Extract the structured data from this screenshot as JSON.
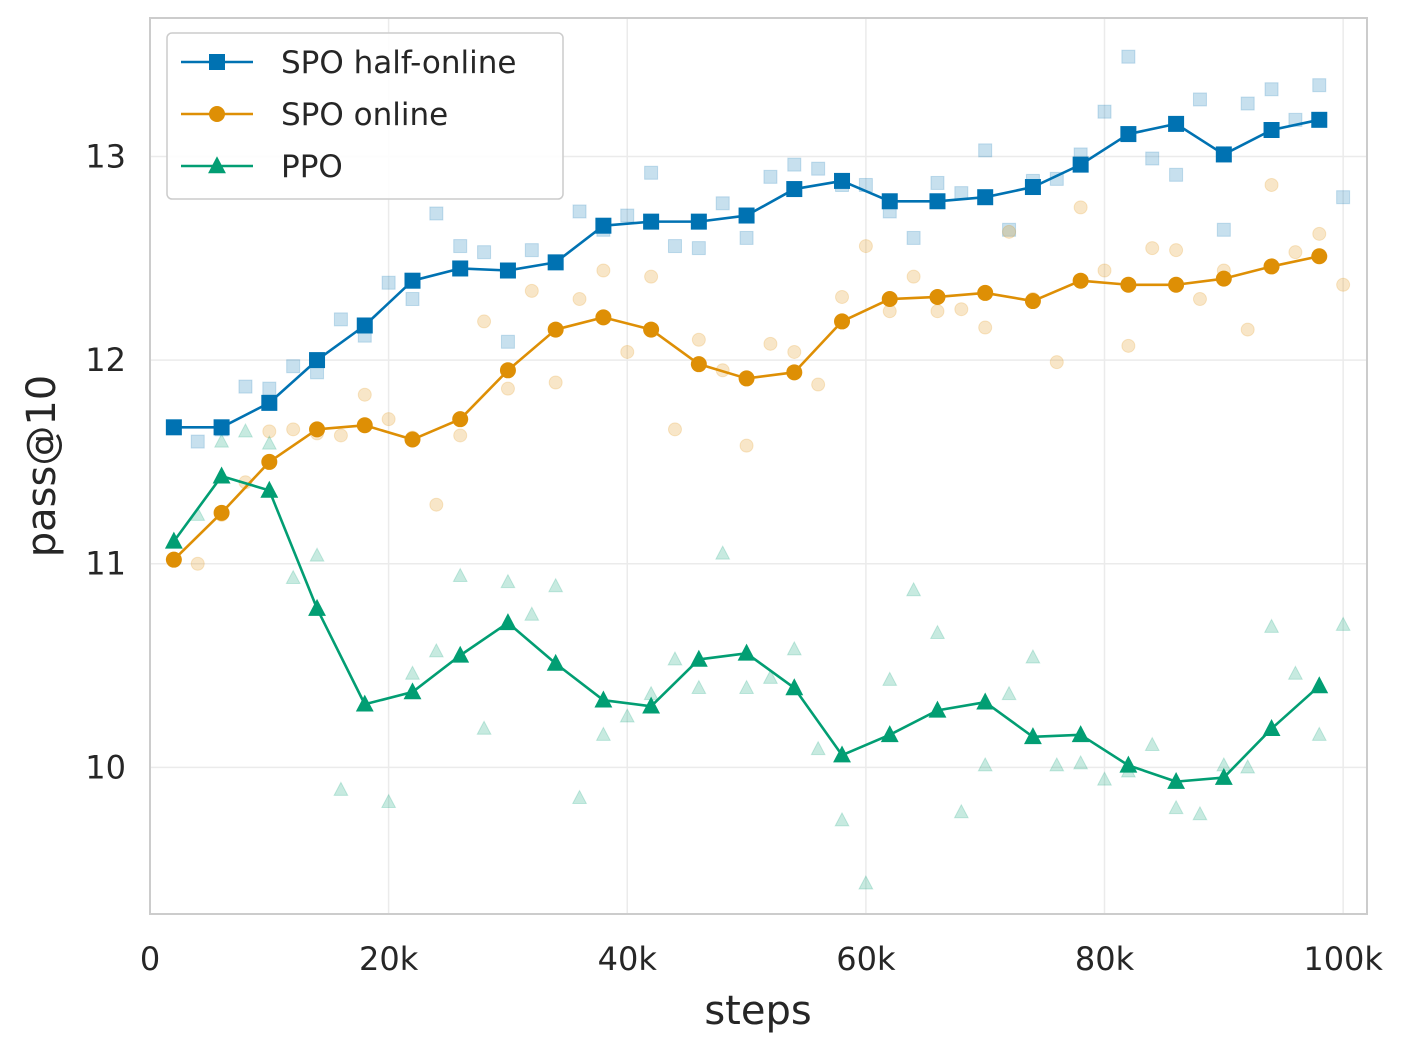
{
  "chart_data": {
    "type": "line",
    "title": "",
    "xlabel": "steps",
    "ylabel": "pass@10",
    "xlim": [
      0,
      102000
    ],
    "ylim": [
      9.28,
      13.68
    ],
    "x_ticks": [
      0,
      20000,
      40000,
      60000,
      80000,
      100000
    ],
    "x_tick_labels": [
      "0",
      "20k",
      "40k",
      "60k",
      "80k",
      "100k"
    ],
    "y_ticks": [
      10,
      11,
      12,
      13
    ],
    "y_tick_labels": [
      "10",
      "11",
      "12",
      "13"
    ],
    "grid": true,
    "legend_position": "top-left",
    "series": [
      {
        "name": "SPO half-online",
        "color": "#0072b2",
        "marker": "square",
        "x": [
          2000,
          6000,
          10000,
          14000,
          18000,
          22000,
          26000,
          30000,
          34000,
          38000,
          42000,
          46000,
          50000,
          54000,
          58000,
          62000,
          66000,
          70000,
          74000,
          78000,
          82000,
          86000,
          90000,
          94000,
          98000
        ],
        "values": [
          11.67,
          11.67,
          11.79,
          12.0,
          12.17,
          12.39,
          12.45,
          12.44,
          12.48,
          12.66,
          12.68,
          12.68,
          12.71,
          12.84,
          12.88,
          12.78,
          12.78,
          12.8,
          12.85,
          12.96,
          13.11,
          13.16,
          13.01,
          13.13,
          13.18
        ],
        "raw_x": [
          4000,
          6000,
          8000,
          10000,
          12000,
          14000,
          16000,
          18000,
          20000,
          22000,
          24000,
          26000,
          28000,
          30000,
          32000,
          34000,
          36000,
          38000,
          40000,
          42000,
          44000,
          46000,
          48000,
          50000,
          52000,
          54000,
          56000,
          58000,
          60000,
          62000,
          64000,
          66000,
          68000,
          70000,
          72000,
          74000,
          76000,
          78000,
          80000,
          82000,
          84000,
          86000,
          88000,
          90000,
          92000,
          94000,
          96000,
          98000,
          100000
        ],
        "raw_values": [
          11.6,
          11.66,
          11.87,
          11.86,
          11.97,
          11.94,
          12.2,
          12.12,
          12.38,
          12.3,
          12.72,
          12.56,
          12.53,
          12.09,
          12.54,
          12.48,
          12.73,
          12.64,
          12.71,
          12.92,
          12.56,
          12.55,
          12.77,
          12.6,
          12.9,
          12.96,
          12.94,
          12.86,
          12.86,
          12.73,
          12.6,
          12.87,
          12.82,
          13.03,
          12.64,
          12.88,
          12.89,
          13.01,
          13.22,
          13.49,
          12.99,
          12.91,
          13.28,
          12.64,
          13.26,
          13.33,
          13.18,
          13.35,
          12.8
        ]
      },
      {
        "name": "SPO online",
        "color": "#de8f05",
        "marker": "circle",
        "x": [
          2000,
          6000,
          10000,
          14000,
          18000,
          22000,
          26000,
          30000,
          34000,
          38000,
          42000,
          46000,
          50000,
          54000,
          58000,
          62000,
          66000,
          70000,
          74000,
          78000,
          82000,
          86000,
          90000,
          94000,
          98000
        ],
        "values": [
          11.02,
          11.25,
          11.5,
          11.66,
          11.68,
          11.61,
          11.71,
          11.95,
          12.15,
          12.21,
          12.15,
          11.98,
          11.91,
          11.94,
          12.19,
          12.3,
          12.31,
          12.33,
          12.29,
          12.39,
          12.37,
          12.37,
          12.4,
          12.46,
          12.51
        ],
        "raw_x": [
          4000,
          6000,
          8000,
          10000,
          12000,
          14000,
          16000,
          18000,
          20000,
          22000,
          24000,
          26000,
          28000,
          30000,
          32000,
          34000,
          36000,
          38000,
          40000,
          42000,
          44000,
          46000,
          48000,
          50000,
          52000,
          54000,
          56000,
          58000,
          60000,
          62000,
          64000,
          66000,
          68000,
          70000,
          72000,
          74000,
          76000,
          78000,
          80000,
          82000,
          84000,
          86000,
          88000,
          90000,
          92000,
          94000,
          96000,
          98000,
          100000
        ],
        "raw_values": [
          11.0,
          11.24,
          11.4,
          11.65,
          11.66,
          11.64,
          11.63,
          11.83,
          11.71,
          11.62,
          11.29,
          11.63,
          12.19,
          11.86,
          12.34,
          11.89,
          12.3,
          12.44,
          12.04,
          12.41,
          11.66,
          12.1,
          11.95,
          11.58,
          12.08,
          12.04,
          11.88,
          12.31,
          12.56,
          12.24,
          12.41,
          12.24,
          12.25,
          12.16,
          12.63,
          12.3,
          11.99,
          12.75,
          12.44,
          12.07,
          12.55,
          12.54,
          12.3,
          12.44,
          12.15,
          12.86,
          12.53,
          12.62,
          12.37
        ]
      },
      {
        "name": "PPO",
        "color": "#029e73",
        "marker": "triangle",
        "x": [
          2000,
          6000,
          10000,
          14000,
          18000,
          22000,
          26000,
          30000,
          34000,
          38000,
          42000,
          46000,
          50000,
          54000,
          58000,
          62000,
          66000,
          70000,
          74000,
          78000,
          82000,
          86000,
          90000,
          94000,
          98000
        ],
        "values": [
          11.11,
          11.43,
          11.36,
          10.78,
          10.31,
          10.37,
          10.55,
          10.71,
          10.51,
          10.33,
          10.3,
          10.53,
          10.56,
          10.39,
          10.06,
          10.16,
          10.28,
          10.32,
          10.15,
          10.16,
          10.01,
          9.93,
          9.95,
          10.19,
          10.4
        ],
        "raw_x": [
          4000,
          6000,
          8000,
          10000,
          12000,
          14000,
          16000,
          18000,
          20000,
          22000,
          24000,
          26000,
          28000,
          30000,
          32000,
          34000,
          36000,
          38000,
          40000,
          42000,
          44000,
          46000,
          48000,
          50000,
          52000,
          54000,
          56000,
          58000,
          60000,
          62000,
          64000,
          66000,
          68000,
          70000,
          72000,
          74000,
          76000,
          78000,
          80000,
          82000,
          84000,
          86000,
          88000,
          90000,
          92000,
          94000,
          96000,
          98000,
          100000
        ],
        "raw_values": [
          11.24,
          11.6,
          11.65,
          11.59,
          10.93,
          11.04,
          9.89,
          10.31,
          9.83,
          10.46,
          10.57,
          10.94,
          10.19,
          10.91,
          10.75,
          10.89,
          9.85,
          10.16,
          10.25,
          10.36,
          10.53,
          10.39,
          11.05,
          10.39,
          10.44,
          10.58,
          10.09,
          9.74,
          9.43,
          10.43,
          10.87,
          10.66,
          9.78,
          10.01,
          10.36,
          10.54,
          10.01,
          10.02,
          9.94,
          9.98,
          10.11,
          9.8,
          9.77,
          10.01,
          10.0,
          10.69,
          10.46,
          10.16,
          10.7
        ]
      }
    ]
  }
}
